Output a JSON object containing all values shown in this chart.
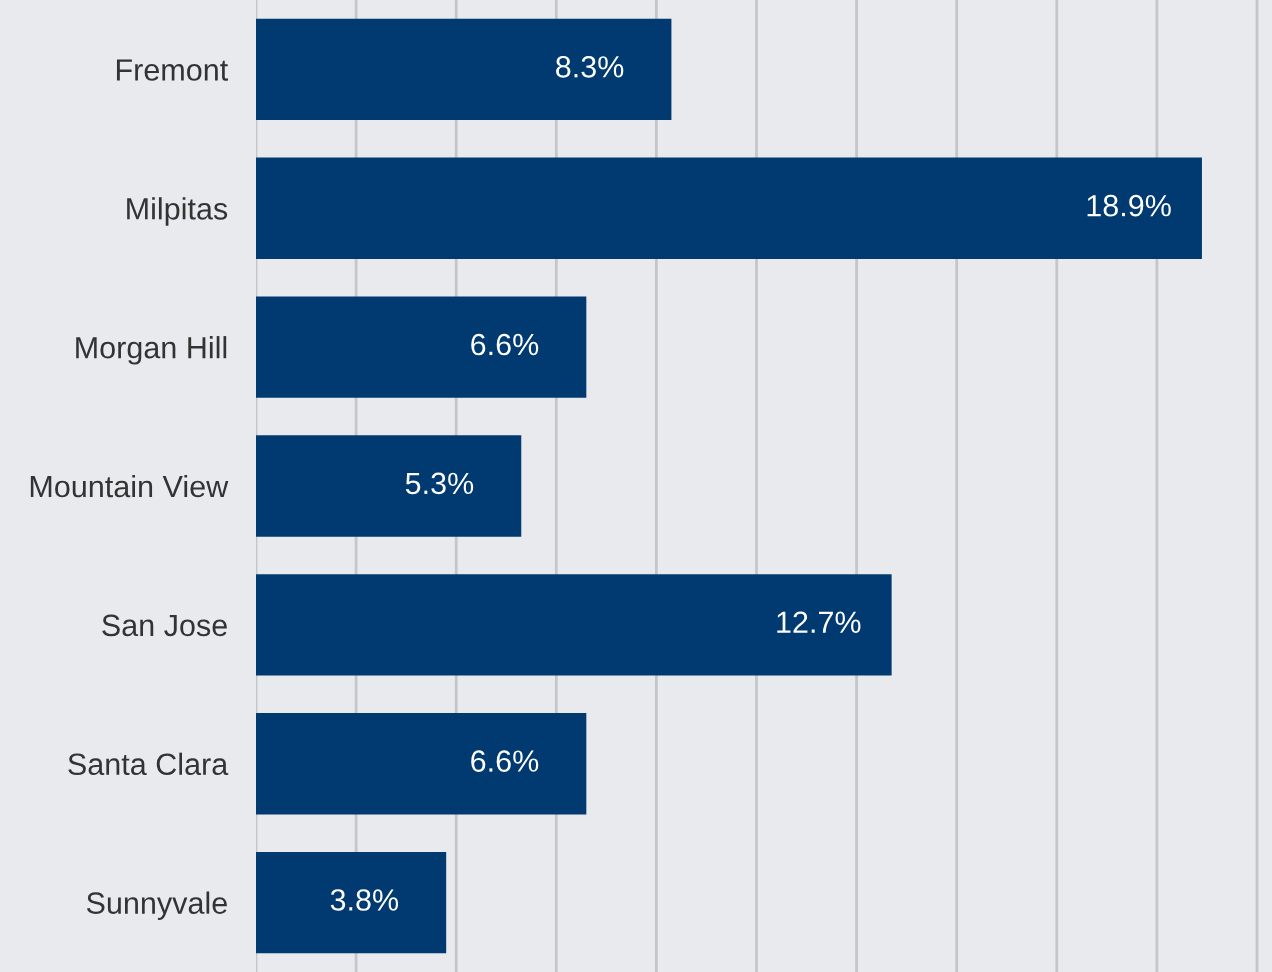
{
  "chart_data": {
    "type": "bar",
    "orientation": "horizontal",
    "categories": [
      "Fremont",
      "Milpitas",
      "Morgan Hill",
      "Mountain View",
      "San Jose",
      "Santa Clara",
      "Sunnyvale"
    ],
    "values": [
      8.3,
      18.9,
      6.6,
      5.3,
      12.7,
      6.6,
      3.8
    ],
    "value_labels": [
      "8.3%",
      "18.9%",
      "6.6%",
      "5.3%",
      "12.7%",
      "6.6%",
      "3.8%"
    ],
    "color": "#003a70",
    "xlim": [
      0,
      20.3
    ],
    "xticks": [
      {
        "value": 0,
        "label": null
      },
      {
        "value": 2,
        "label": null
      },
      {
        "value": 4,
        "label": null
      },
      {
        "value": 6,
        "label": null
      },
      {
        "value": 8,
        "label": null
      },
      {
        "value": 10,
        "label": null
      },
      {
        "value": 12,
        "label": null
      },
      {
        "value": 14,
        "label": null
      },
      {
        "value": 16,
        "label": null
      },
      {
        "value": 18,
        "label": null
      },
      {
        "value": 20,
        "label": null
      }
    ],
    "grid": "x",
    "legend": false,
    "tick_labels": "y"
  }
}
